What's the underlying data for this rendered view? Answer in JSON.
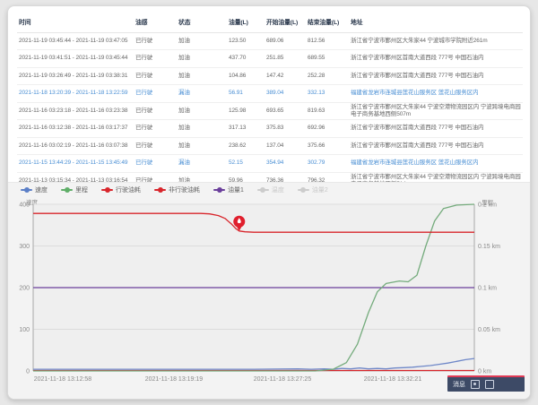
{
  "table": {
    "headers": [
      "时间",
      "油感",
      "状态",
      "油量(L)",
      "开始油量(L)",
      "结束油量(L)",
      "地址"
    ],
    "rows": [
      {
        "time": "2021-11-19 03:45:44 - 2021-11-19 03:47:05",
        "sensor": "已行驶",
        "status": "加油",
        "fuel": "123.50",
        "start": "689.06",
        "end": "812.56",
        "address": "浙江省宁波市鄞州区大朱家44 宁波城市学院附近261m",
        "leak": false
      },
      {
        "time": "2021-11-19 03:41:51 - 2021-11-19 03:45:44",
        "sensor": "已行驶",
        "status": "加油",
        "fuel": "437.70",
        "start": "251.85",
        "end": "689.55",
        "address": "浙江省宁波市鄞州区首南大道西段 777号 中国石油内",
        "leak": false
      },
      {
        "time": "2021-11-19 03:26:49 - 2021-11-19 03:38:31",
        "sensor": "已行驶",
        "status": "加油",
        "fuel": "104.86",
        "start": "147.42",
        "end": "252.28",
        "address": "浙江省宁波市鄞州区首南大道西段 777号 中国石油内",
        "leak": false
      },
      {
        "time": "2021-11-18 13:20:39 - 2021-11-18 13:22:59",
        "sensor": "已行驶",
        "status": "漏油",
        "fuel": "56.91",
        "start": "389.04",
        "end": "332.13",
        "address": "福建省龙岩市连城县莲花山服务区 莲花山服务区内",
        "leak": true
      },
      {
        "time": "2021-11-16 03:23:18 - 2021-11-16 03:23:38",
        "sensor": "已行驶",
        "status": "加油",
        "fuel": "125.98",
        "start": "693.65",
        "end": "819.63",
        "address": "浙江省宁波市鄞州区大朱家44 宁波空港物流园区内 宁波跨境电商园电子商务基地西侧507m",
        "leak": false
      },
      {
        "time": "2021-11-16 03:12:38 - 2021-11-16 03:17:37",
        "sensor": "已行驶",
        "status": "加油",
        "fuel": "317.13",
        "start": "375.83",
        "end": "692.96",
        "address": "浙江省宁波市鄞州区首南大道西段 777号 中国石油内",
        "leak": false
      },
      {
        "time": "2021-11-16 03:02:19 - 2021-11-16 03:07:38",
        "sensor": "已行驶",
        "status": "加油",
        "fuel": "238.62",
        "start": "137.04",
        "end": "375.66",
        "address": "浙江省宁波市鄞州区首南大道西段 777号 中国石油内",
        "leak": false
      },
      {
        "time": "2021-11-15 13:44:29 - 2021-11-15 13:45:49",
        "sensor": "已行驶",
        "status": "漏油",
        "fuel": "52.15",
        "start": "354.94",
        "end": "302.79",
        "address": "福建省龙岩市连城县莲花山服务区 莲花山服务区内",
        "leak": true
      },
      {
        "time": "2021-11-13 03:15:34 - 2021-11-13 03:16:54",
        "sensor": "已行驶",
        "status": "加油",
        "fuel": "59.96",
        "start": "736.36",
        "end": "796.32",
        "address": "浙江省宁波市鄞州区大朱家44 宁波空港物流园区内 宁波跨境电商园电子商务基地西侧514m",
        "leak": false
      }
    ]
  },
  "legend": {
    "items": [
      {
        "label": "速度",
        "color": "#5b7fc7",
        "enabled": true
      },
      {
        "label": "里程",
        "color": "#5fae68",
        "enabled": true
      },
      {
        "label": "行驶油耗",
        "color": "#d8252b",
        "enabled": true
      },
      {
        "label": "非行驶油耗",
        "color": "#d8252b",
        "enabled": true
      },
      {
        "label": "油量1",
        "color": "#6a3e9b",
        "enabled": true
      },
      {
        "label": "温度",
        "color": "#cccccc",
        "enabled": false
      },
      {
        "label": "油量2",
        "color": "#cccccc",
        "enabled": false
      }
    ]
  },
  "chart_data": {
    "type": "line",
    "title": "",
    "left_axis": {
      "title": "速度",
      "ticks": [
        "400",
        "300",
        "200",
        "100",
        "0"
      ],
      "range": [
        0,
        400
      ]
    },
    "right_axis": {
      "title": "里程",
      "ticks": [
        "0.2 km",
        "0.15 km",
        "0.1 km",
        "0.05 km",
        "0 km"
      ],
      "range": [
        0,
        0.2
      ]
    },
    "x_labels": [
      {
        "text": "2021-11-18 13:12:58",
        "pos": 0.067
      },
      {
        "text": "2021-11-18 13:19:19",
        "pos": 0.319
      },
      {
        "text": "2021-11-18 13:27:25",
        "pos": 0.565
      },
      {
        "text": "2021-11-18 13:32:21",
        "pos": 0.815
      }
    ],
    "grid": true,
    "legend_position": "top-left",
    "series": [
      {
        "name": "油量1",
        "axis": "left",
        "color": "#6a3e9b",
        "points": [
          [
            0,
            200
          ],
          [
            1,
            200
          ]
        ]
      },
      {
        "name": "非行驶油耗",
        "axis": "left",
        "color": "#d8252b",
        "points": [
          [
            0,
            1
          ],
          [
            1,
            1
          ]
        ]
      },
      {
        "name": "速度",
        "axis": "left",
        "color": "#6e87c8",
        "points": [
          [
            0,
            4
          ],
          [
            0.3,
            4
          ],
          [
            0.5,
            4
          ],
          [
            0.6,
            5
          ],
          [
            0.63,
            4
          ],
          [
            0.66,
            5
          ],
          [
            0.68,
            4
          ],
          [
            0.7,
            6
          ],
          [
            0.72,
            5
          ],
          [
            0.74,
            7
          ],
          [
            0.76,
            5
          ],
          [
            0.78,
            6
          ],
          [
            0.8,
            5
          ],
          [
            0.82,
            7
          ],
          [
            0.84,
            8
          ],
          [
            0.86,
            9
          ],
          [
            0.88,
            11
          ],
          [
            0.9,
            13
          ],
          [
            0.92,
            16
          ],
          [
            0.94,
            19
          ],
          [
            0.96,
            23
          ],
          [
            0.98,
            27
          ],
          [
            1,
            30
          ]
        ]
      },
      {
        "name": "里程",
        "axis": "right",
        "color": "#74ab7c",
        "points": [
          [
            0,
            0
          ],
          [
            0.64,
            0
          ],
          [
            0.68,
            0.002
          ],
          [
            0.71,
            0.01
          ],
          [
            0.735,
            0.032
          ],
          [
            0.76,
            0.07
          ],
          [
            0.78,
            0.095
          ],
          [
            0.8,
            0.105
          ],
          [
            0.83,
            0.108
          ],
          [
            0.85,
            0.107
          ],
          [
            0.87,
            0.115
          ],
          [
            0.89,
            0.15
          ],
          [
            0.91,
            0.18
          ],
          [
            0.93,
            0.195
          ],
          [
            0.96,
            0.199
          ],
          [
            1,
            0.2
          ]
        ]
      },
      {
        "name": "行驶油耗",
        "axis": "left",
        "color": "#d8252b",
        "points": [
          [
            0,
            378
          ],
          [
            0.38,
            378
          ],
          [
            0.4,
            377
          ],
          [
            0.42,
            373
          ],
          [
            0.435,
            366
          ],
          [
            0.45,
            352
          ],
          [
            0.46,
            341
          ],
          [
            0.467,
            336
          ],
          [
            0.48,
            334
          ],
          [
            0.5,
            333
          ],
          [
            1,
            333
          ]
        ]
      }
    ],
    "marker": {
      "series": "行驶油耗",
      "x": 0.467,
      "value": 336,
      "color": "#e01f2d",
      "icon": "droplet-icon"
    }
  },
  "widget": {
    "message_label": "消息"
  }
}
